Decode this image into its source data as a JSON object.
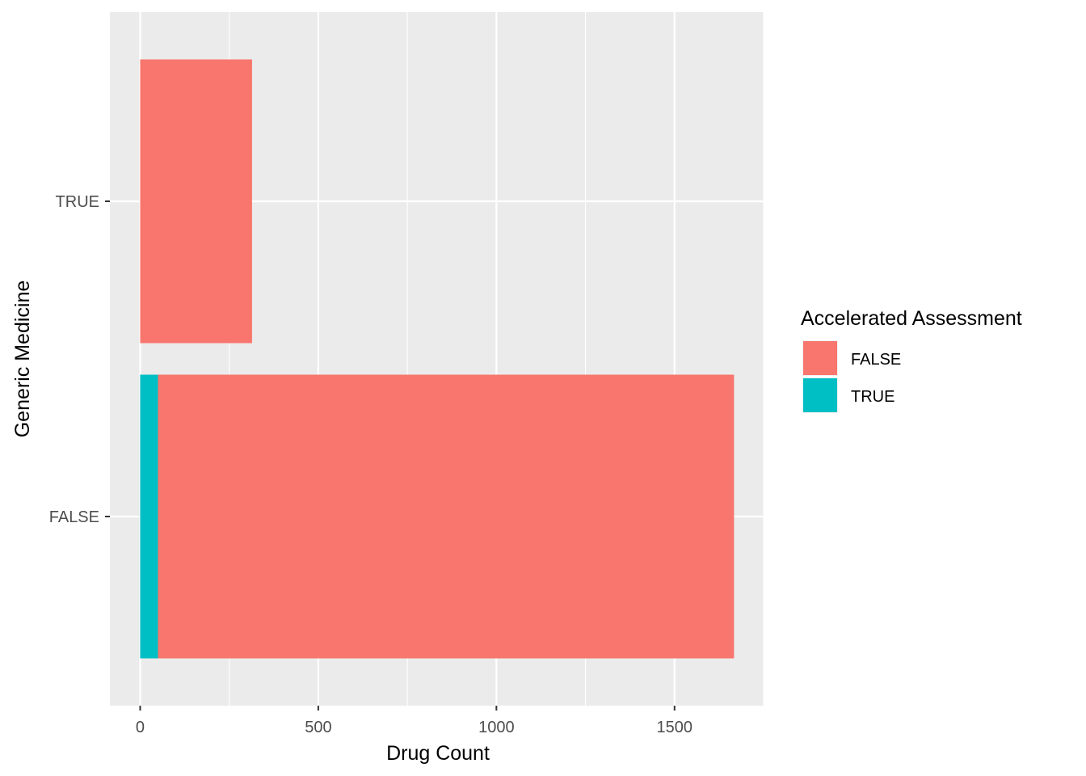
{
  "chart_data": {
    "type": "bar",
    "orientation": "horizontal",
    "stacked": true,
    "categories": [
      "FALSE",
      "TRUE"
    ],
    "series": [
      {
        "name": "FALSE",
        "color": "#F8766D",
        "values": [
          1617,
          314
        ]
      },
      {
        "name": "TRUE",
        "color": "#00BFC4",
        "values": [
          50,
          0
        ]
      }
    ],
    "stack_order": [
      "TRUE",
      "FALSE"
    ],
    "xlabel": "Drug Count",
    "ylabel": "Generic Medicine",
    "xlim": [
      -85,
      1750
    ],
    "xticks": [
      0,
      500,
      1000,
      1500
    ],
    "x_minor_ticks": [
      250,
      750,
      1250,
      1750
    ],
    "grid": true,
    "legend": {
      "title": "Accelerated Assessment",
      "placement": "right",
      "items": [
        {
          "label": "FALSE",
          "color": "#F8766D"
        },
        {
          "label": "TRUE",
          "color": "#00BFC4"
        }
      ]
    },
    "panel_background": "#EBEBEB",
    "grid_color": "#FFFFFF"
  }
}
